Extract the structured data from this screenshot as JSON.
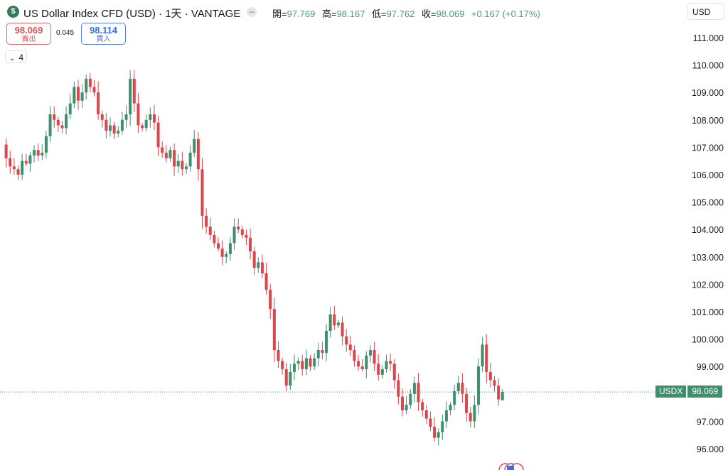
{
  "header": {
    "logo_glyph": "$",
    "title": "US Dollar Index CFD (USD) · 1天 · VANTAGE",
    "more_glyph": "–",
    "ohlc": [
      {
        "key": "開=",
        "value": "97.769"
      },
      {
        "key": "高=",
        "value": "98.167"
      },
      {
        "key": "低=",
        "value": "97.762"
      },
      {
        "key": "收=",
        "value": "98.069"
      },
      {
        "key": "",
        "value": "+0.167 (+0.17%)"
      }
    ],
    "currency": "USD"
  },
  "quote": {
    "sell_price": "98.069",
    "sell_label": "賣出",
    "spread": "0.045",
    "buy_price": "98.114",
    "buy_label": "買入"
  },
  "indicators_toggle": {
    "count": "4"
  },
  "price_label": {
    "symbol": "USDX",
    "value": "98.069"
  },
  "colors": {
    "up": "#3d8f6d",
    "down": "#d9464c",
    "last_price_line": "#3d8f6d",
    "text": "#131722"
  },
  "chart_data": {
    "type": "candlestick",
    "title": "US Dollar Index CFD (USD)",
    "timeframe": "1天",
    "y_axis_side": "right",
    "y_ticks": [
      111,
      110,
      109,
      108,
      107,
      106,
      105,
      104,
      103,
      102,
      101,
      100,
      99,
      97,
      96
    ],
    "y_tick_labels": [
      "111.000",
      "110.000",
      "109.000",
      "108.000",
      "107.000",
      "106.000",
      "105.000",
      "104.000",
      "103.000",
      "102.000",
      "101.000",
      "100.000",
      "99.000",
      "97.000",
      "96.000"
    ],
    "ylim": [
      95.7,
      111.9
    ],
    "last_price": 98.069,
    "last_ohlc": {
      "open": 97.769,
      "high": 98.167,
      "low": 97.762,
      "close": 98.069
    },
    "close_path": [
      107.1,
      106.6,
      106.3,
      106.2,
      106.0,
      106.5,
      106.4,
      106.7,
      106.9,
      106.7,
      106.8,
      107.4,
      108.2,
      108.0,
      107.8,
      107.7,
      108.2,
      108.6,
      109.2,
      108.7,
      109.0,
      109.5,
      109.2,
      109.0,
      108.2,
      108.0,
      107.6,
      107.8,
      107.5,
      107.6,
      108.0,
      108.2,
      109.5,
      108.6,
      107.8,
      107.7,
      108.0,
      108.2,
      107.9,
      107.0,
      106.8,
      106.6,
      106.9,
      106.3,
      106.5,
      106.2,
      106.3,
      106.8,
      107.3,
      106.2,
      104.5,
      104.1,
      103.8,
      103.5,
      103.3,
      103.0,
      103.1,
      103.5,
      104.1,
      104.0,
      103.8,
      103.7,
      103.2,
      102.6,
      102.8,
      102.4,
      101.8,
      101.1,
      99.6,
      99.2,
      98.9,
      98.3,
      98.8,
      99.1,
      99.2,
      98.9,
      99.3,
      99.0,
      99.3,
      99.6,
      99.5,
      100.3,
      100.9,
      100.5,
      100.6,
      100.1,
      99.8,
      99.6,
      99.2,
      99.0,
      98.9,
      99.4,
      99.6,
      99.1,
      98.7,
      98.9,
      99.2,
      99.1,
      98.5,
      97.9,
      97.4,
      97.6,
      98.0,
      98.4,
      97.7,
      97.4,
      97.1,
      96.8,
      96.4,
      96.6,
      97.0,
      97.4,
      97.6,
      98.1,
      98.4,
      98.0,
      97.3,
      97.0,
      97.6,
      99.0,
      99.8,
      98.8,
      98.5,
      98.3,
      97.8,
      98.069
    ]
  }
}
